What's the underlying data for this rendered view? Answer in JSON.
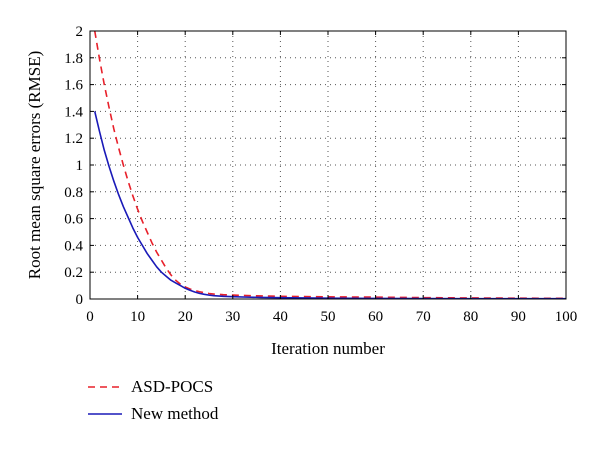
{
  "chart_data": {
    "type": "line",
    "title": "",
    "xlabel": "Iteration number",
    "ylabel": "Root mean square errors (RMSE)",
    "xlim": [
      0,
      100
    ],
    "ylim": [
      0,
      2
    ],
    "xticks": [
      0,
      10,
      20,
      30,
      40,
      50,
      60,
      70,
      80,
      90,
      100
    ],
    "yticks": [
      0,
      0.2,
      0.4,
      0.6,
      0.8,
      1,
      1.2,
      1.4,
      1.6,
      1.8,
      2
    ],
    "xtick_labels": [
      "0",
      "10",
      "20",
      "30",
      "40",
      "50",
      "60",
      "70",
      "80",
      "90",
      "100"
    ],
    "ytick_labels": [
      "0",
      "0.2",
      "0.4",
      "0.6",
      "0.8",
      "1",
      "1.2",
      "1.4",
      "1.6",
      "1.8",
      "2"
    ],
    "grid": true,
    "grid_style": "dotted",
    "legend_position": "below",
    "series": [
      {
        "name": "ASD-POCS",
        "color": "#e8202a",
        "line_style": "dashed",
        "x": [
          1,
          2,
          3,
          4,
          5,
          6,
          7,
          8,
          9,
          10,
          11,
          12,
          13,
          14,
          15,
          16,
          17,
          18,
          19,
          20,
          21,
          22,
          23,
          24,
          25,
          26,
          28,
          30,
          33,
          36,
          40,
          45,
          50,
          55,
          60,
          70,
          80,
          90,
          100
        ],
        "y": [
          2.0,
          1.79,
          1.6,
          1.43,
          1.27,
          1.13,
          1.0,
          0.88,
          0.77,
          0.67,
          0.58,
          0.5,
          0.42,
          0.35,
          0.29,
          0.23,
          0.18,
          0.14,
          0.11,
          0.09,
          0.075,
          0.063,
          0.054,
          0.047,
          0.041,
          0.037,
          0.032,
          0.029,
          0.026,
          0.023,
          0.02,
          0.018,
          0.016,
          0.015,
          0.014,
          0.01,
          0.008,
          0.006,
          0.005
        ]
      },
      {
        "name": "New method",
        "color": "#1a1ab8",
        "line_style": "solid",
        "x": [
          1,
          2,
          3,
          4,
          5,
          6,
          7,
          8,
          9,
          10,
          11,
          12,
          13,
          14,
          15,
          16,
          17,
          18,
          19,
          20,
          21,
          22,
          23,
          24,
          25,
          26,
          28,
          30,
          33,
          36,
          40,
          45,
          50,
          60,
          70,
          80,
          90,
          100
        ],
        "y": [
          1.4,
          1.25,
          1.11,
          0.99,
          0.88,
          0.78,
          0.69,
          0.61,
          0.53,
          0.46,
          0.4,
          0.34,
          0.29,
          0.24,
          0.2,
          0.17,
          0.14,
          0.12,
          0.1,
          0.08,
          0.065,
          0.052,
          0.042,
          0.035,
          0.029,
          0.025,
          0.02,
          0.017,
          0.014,
          0.012,
          0.01,
          0.008,
          0.006,
          0.004,
          0.003,
          0.002,
          0.002,
          0.002
        ]
      }
    ]
  }
}
